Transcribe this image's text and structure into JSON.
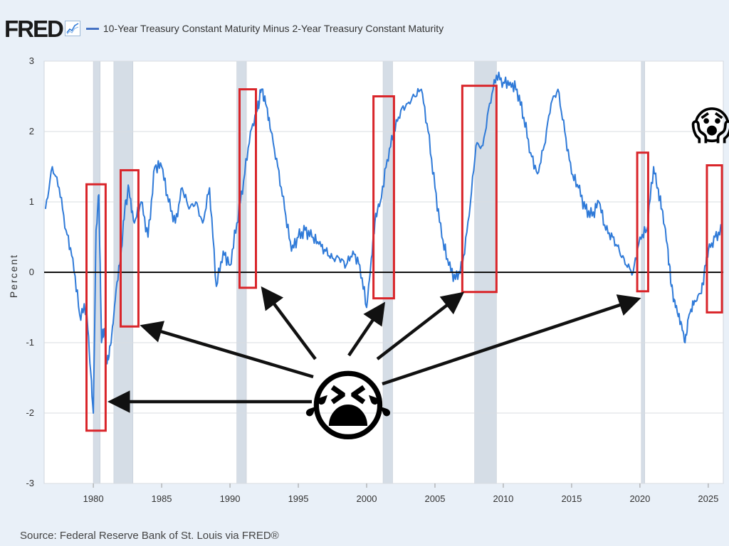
{
  "header": {
    "logo_text": "FRED",
    "logo_icon": "fred-trend-icon",
    "title": "10-Year Treasury Constant Maturity Minus 2-Year Treasury Constant Maturity"
  },
  "footer": {
    "source": "Source: Federal Reserve Bank of St. Louis via FRED®"
  },
  "colors": {
    "series": "#2f7ad8",
    "recession": "#d5dde6",
    "highlight": "#d9252a",
    "arrow": "#111111",
    "zero_line": "#111111",
    "background": "#ffffff"
  },
  "chart_data": {
    "type": "line",
    "title": "10-Year Treasury Constant Maturity Minus 2-Year Treasury Constant Maturity",
    "xlabel": "",
    "ylabel": "Percent",
    "xlim": [
      1976.4,
      2026.1
    ],
    "ylim": [
      -3,
      3
    ],
    "x_ticks": [
      1980,
      1985,
      1990,
      1995,
      2000,
      2005,
      2010,
      2015,
      2020,
      2025
    ],
    "y_ticks": [
      -3,
      -2,
      -1,
      0,
      1,
      2,
      3
    ],
    "grid": true,
    "zero_line": 0,
    "series": [
      {
        "name": "10-Year Treasury Constant Maturity Minus 2-Year Treasury Constant Maturity",
        "x": [
          1976.5,
          1977.0,
          1977.5,
          1978.0,
          1978.5,
          1979.0,
          1979.5,
          1979.8,
          1980.0,
          1980.2,
          1980.4,
          1980.6,
          1980.8,
          1981.0,
          1981.3,
          1981.6,
          1982.0,
          1982.3,
          1982.6,
          1983.0,
          1983.5,
          1984.0,
          1984.5,
          1985.0,
          1985.5,
          1986.0,
          1986.5,
          1987.0,
          1987.5,
          1988.0,
          1988.5,
          1989.0,
          1989.5,
          1990.0,
          1990.5,
          1991.0,
          1991.5,
          1992.0,
          1992.3,
          1992.6,
          1993.0,
          1993.5,
          1994.0,
          1994.5,
          1995.0,
          1995.5,
          1996.0,
          1996.5,
          1997.0,
          1997.5,
          1998.0,
          1998.5,
          1999.0,
          1999.5,
          2000.0,
          2000.3,
          2000.6,
          2001.0,
          2001.5,
          2002.0,
          2002.5,
          2003.0,
          2003.5,
          2004.0,
          2004.5,
          2005.0,
          2005.5,
          2006.0,
          2006.5,
          2007.0,
          2007.5,
          2008.0,
          2008.5,
          2009.0,
          2009.5,
          2010.0,
          2010.5,
          2011.0,
          2011.5,
          2012.0,
          2012.5,
          2013.0,
          2013.5,
          2014.0,
          2014.5,
          2015.0,
          2015.5,
          2016.0,
          2016.5,
          2017.0,
          2017.5,
          2018.0,
          2018.5,
          2019.0,
          2019.5,
          2020.0,
          2020.5,
          2021.0,
          2021.3,
          2021.6,
          2022.0,
          2022.3,
          2022.6,
          2023.0,
          2023.3,
          2023.6,
          2024.0,
          2024.5,
          2024.8,
          2025.0,
          2025.5,
          2026.0
        ],
        "values": [
          0.9,
          1.5,
          1.2,
          0.6,
          0.2,
          -0.6,
          -0.5,
          -1.4,
          -2.0,
          0.6,
          1.1,
          -1.0,
          -0.8,
          -1.3,
          -1.0,
          -0.4,
          0.2,
          0.9,
          1.2,
          0.7,
          1.0,
          0.5,
          1.5,
          1.5,
          1.0,
          0.7,
          1.2,
          0.9,
          1.0,
          0.7,
          1.2,
          -0.2,
          0.3,
          0.1,
          0.7,
          1.3,
          2.0,
          2.3,
          2.6,
          2.4,
          2.0,
          1.5,
          0.9,
          0.3,
          0.5,
          0.6,
          0.5,
          0.4,
          0.3,
          0.2,
          0.2,
          0.1,
          0.3,
          0.1,
          -0.5,
          0.1,
          0.7,
          1.0,
          1.6,
          2.0,
          2.3,
          2.4,
          2.5,
          2.6,
          2.0,
          1.2,
          0.5,
          0.1,
          -0.1,
          0.1,
          0.8,
          1.8,
          1.8,
          2.4,
          2.8,
          2.7,
          2.7,
          2.6,
          2.2,
          1.7,
          1.4,
          1.8,
          2.4,
          2.6,
          2.0,
          1.4,
          1.2,
          0.9,
          0.8,
          1.0,
          0.6,
          0.5,
          0.3,
          0.1,
          0.0,
          0.5,
          0.6,
          1.5,
          1.2,
          0.9,
          0.4,
          -0.2,
          -0.5,
          -0.7,
          -1.0,
          -0.6,
          -0.4,
          -0.3,
          0.1,
          0.3,
          0.5,
          0.6
        ]
      }
    ],
    "recessions": [
      [
        1980.0,
        1980.5
      ],
      [
        1981.5,
        1982.9
      ],
      [
        1990.5,
        1991.2
      ],
      [
        2001.2,
        2001.9
      ],
      [
        2007.9,
        2009.5
      ],
      [
        2020.1,
        2020.35
      ]
    ],
    "highlight_boxes": [
      {
        "x": [
          1979.5,
          1980.9
        ],
        "y": [
          -2.25,
          1.25
        ]
      },
      {
        "x": [
          1982.0,
          1983.3
        ],
        "y": [
          -0.77,
          1.45
        ]
      },
      {
        "x": [
          1990.7,
          1991.9
        ],
        "y": [
          -0.22,
          2.6
        ]
      },
      {
        "x": [
          2000.5,
          2002.0
        ],
        "y": [
          -0.37,
          2.5
        ]
      },
      {
        "x": [
          2007.0,
          2009.5
        ],
        "y": [
          -0.28,
          2.65
        ]
      },
      {
        "x": [
          2019.8,
          2020.6
        ],
        "y": [
          -0.27,
          1.7
        ]
      },
      {
        "x": [
          2024.9,
          2026.0
        ],
        "y": [
          -0.57,
          1.52
        ]
      }
    ],
    "annotation_emoji": [
      {
        "name": "crying-face",
        "glyph": "😭",
        "anchor": "bottom-center"
      },
      {
        "name": "screaming-face",
        "glyph": "😱",
        "anchor": "top-right"
      }
    ]
  }
}
